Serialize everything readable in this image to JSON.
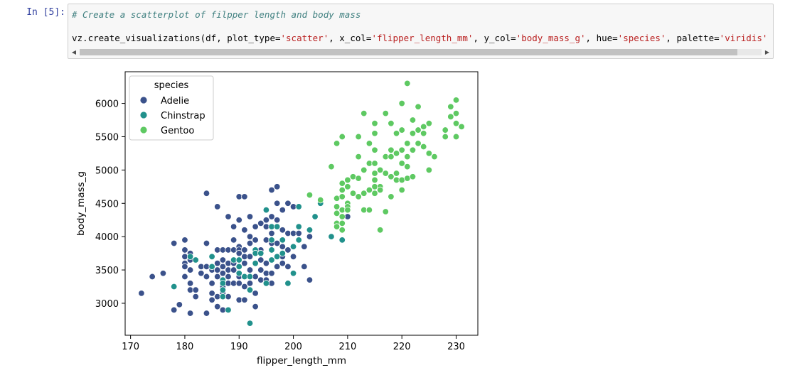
{
  "cell": {
    "prompt": "In [5]:",
    "comment": "# Create a scatterplot of filpper length and body mass",
    "code_parts": [
      {
        "text": "vz.create_visualizations(df, plot_type=",
        "cls": "plain"
      },
      {
        "text": "'scatter'",
        "cls": "str"
      },
      {
        "text": ", x_col=",
        "cls": "plain"
      },
      {
        "text": "'flipper_length_mm'",
        "cls": "str"
      },
      {
        "text": ", y_col=",
        "cls": "plain"
      },
      {
        "text": "'body_mass_g'",
        "cls": "str"
      },
      {
        "text": ", hue=",
        "cls": "plain"
      },
      {
        "text": "'species'",
        "cls": "str"
      },
      {
        "text": ", palette=",
        "cls": "plain"
      },
      {
        "text": "'viridis'",
        "cls": "str"
      }
    ],
    "scroll_left_icon": "triangle-left",
    "scroll_right_icon": "triangle-right"
  },
  "chart_data": {
    "type": "scatter",
    "xlabel": "flipper_length_mm",
    "ylabel": "body_mass_g",
    "xlim": [
      169,
      234
    ],
    "ylim": [
      2520,
      6475
    ],
    "xticks": [
      170,
      180,
      190,
      200,
      210,
      220,
      230
    ],
    "yticks": [
      3000,
      3500,
      4000,
      4500,
      5000,
      5500,
      6000
    ],
    "grid": false,
    "legend": {
      "title": "species",
      "placement": "top-left"
    },
    "series": [
      {
        "name": "Adelie",
        "color": "#3b528b",
        "points": [
          [
            172,
            3150
          ],
          [
            174,
            3400
          ],
          [
            176,
            3450
          ],
          [
            178,
            3900
          ],
          [
            178,
            2900
          ],
          [
            179,
            2980
          ],
          [
            180,
            3950
          ],
          [
            180,
            3800
          ],
          [
            180,
            3700
          ],
          [
            180,
            3600
          ],
          [
            180,
            3550
          ],
          [
            180,
            3400
          ],
          [
            181,
            3750
          ],
          [
            181,
            3650
          ],
          [
            181,
            3500
          ],
          [
            181,
            3300
          ],
          [
            181,
            3200
          ],
          [
            181,
            2850
          ],
          [
            182,
            3200
          ],
          [
            182,
            3100
          ],
          [
            183,
            3550
          ],
          [
            183,
            3450
          ],
          [
            184,
            4650
          ],
          [
            184,
            3900
          ],
          [
            184,
            3550
          ],
          [
            184,
            3400
          ],
          [
            184,
            2850
          ],
          [
            185,
            3700
          ],
          [
            185,
            3500
          ],
          [
            185,
            3300
          ],
          [
            185,
            3150
          ],
          [
            185,
            3050
          ],
          [
            186,
            4450
          ],
          [
            186,
            3800
          ],
          [
            186,
            3600
          ],
          [
            186,
            3500
          ],
          [
            186,
            3400
          ],
          [
            186,
            3100
          ],
          [
            186,
            2950
          ],
          [
            187,
            3800
          ],
          [
            187,
            3650
          ],
          [
            187,
            3550
          ],
          [
            187,
            3450
          ],
          [
            187,
            3350
          ],
          [
            187,
            3250
          ],
          [
            187,
            3150
          ],
          [
            187,
            2900
          ],
          [
            188,
            4300
          ],
          [
            188,
            3800
          ],
          [
            188,
            3600
          ],
          [
            188,
            3500
          ],
          [
            188,
            3400
          ],
          [
            188,
            3300
          ],
          [
            188,
            3100
          ],
          [
            189,
            4150
          ],
          [
            189,
            3950
          ],
          [
            189,
            3800
          ],
          [
            189,
            3600
          ],
          [
            189,
            3500
          ],
          [
            189,
            3300
          ],
          [
            190,
            4600
          ],
          [
            190,
            4250
          ],
          [
            190,
            3850
          ],
          [
            190,
            3800
          ],
          [
            190,
            3750
          ],
          [
            190,
            3650
          ],
          [
            190,
            3450
          ],
          [
            190,
            3400
          ],
          [
            190,
            3300
          ],
          [
            190,
            3050
          ],
          [
            191,
            4600
          ],
          [
            191,
            4100
          ],
          [
            191,
            3800
          ],
          [
            191,
            3700
          ],
          [
            191,
            3600
          ],
          [
            191,
            3400
          ],
          [
            191,
            3250
          ],
          [
            191,
            3050
          ],
          [
            192,
            4300
          ],
          [
            192,
            4000
          ],
          [
            192,
            3900
          ],
          [
            192,
            3700
          ],
          [
            192,
            3500
          ],
          [
            192,
            3300
          ],
          [
            193,
            4150
          ],
          [
            193,
            3950
          ],
          [
            193,
            3600
          ],
          [
            193,
            3400
          ],
          [
            193,
            3150
          ],
          [
            193,
            2950
          ],
          [
            194,
            4200
          ],
          [
            194,
            3800
          ],
          [
            194,
            3650
          ],
          [
            194,
            3500
          ],
          [
            194,
            3350
          ],
          [
            195,
            4400
          ],
          [
            195,
            4250
          ],
          [
            195,
            4150
          ],
          [
            195,
            3950
          ],
          [
            195,
            3600
          ],
          [
            195,
            3450
          ],
          [
            195,
            3350
          ],
          [
            196,
            4700
          ],
          [
            196,
            4300
          ],
          [
            196,
            4050
          ],
          [
            196,
            3900
          ],
          [
            196,
            3650
          ],
          [
            196,
            3450
          ],
          [
            196,
            3300
          ],
          [
            197,
            4750
          ],
          [
            197,
            4500
          ],
          [
            197,
            4250
          ],
          [
            197,
            3900
          ],
          [
            197,
            3700
          ],
          [
            197,
            3550
          ],
          [
            198,
            4400
          ],
          [
            198,
            4100
          ],
          [
            198,
            3850
          ],
          [
            198,
            3700
          ],
          [
            198,
            3600
          ],
          [
            199,
            4500
          ],
          [
            199,
            4050
          ],
          [
            199,
            3800
          ],
          [
            199,
            3550
          ],
          [
            200,
            4450
          ],
          [
            200,
            4050
          ],
          [
            200,
            3850
          ],
          [
            200,
            3700
          ],
          [
            201,
            4050
          ],
          [
            202,
            3850
          ],
          [
            202,
            3550
          ],
          [
            203,
            4000
          ],
          [
            203,
            3350
          ],
          [
            210,
            4300
          ]
        ]
      },
      {
        "name": "Chinstrap",
        "color": "#21918c",
        "points": [
          [
            178,
            3250
          ],
          [
            181,
            3700
          ],
          [
            182,
            3650
          ],
          [
            185,
            3700
          ],
          [
            185,
            3550
          ],
          [
            187,
            3350
          ],
          [
            187,
            3300
          ],
          [
            187,
            3200
          ],
          [
            187,
            3100
          ],
          [
            188,
            2900
          ],
          [
            189,
            3650
          ],
          [
            190,
            3650
          ],
          [
            190,
            3550
          ],
          [
            190,
            3450
          ],
          [
            191,
            3400
          ],
          [
            192,
            2700
          ],
          [
            192,
            3400
          ],
          [
            192,
            3200
          ],
          [
            193,
            3600
          ],
          [
            193,
            3800
          ],
          [
            193,
            3750
          ],
          [
            194,
            3750
          ],
          [
            195,
            4400
          ],
          [
            195,
            3300
          ],
          [
            196,
            4150
          ],
          [
            196,
            3950
          ],
          [
            196,
            3800
          ],
          [
            196,
            3650
          ],
          [
            197,
            4150
          ],
          [
            197,
            3700
          ],
          [
            198,
            3750
          ],
          [
            198,
            3950
          ],
          [
            199,
            3300
          ],
          [
            200,
            3850
          ],
          [
            200,
            3450
          ],
          [
            201,
            4150
          ],
          [
            201,
            4450
          ],
          [
            201,
            3950
          ],
          [
            203,
            4100
          ],
          [
            204,
            4300
          ],
          [
            205,
            4500
          ],
          [
            207,
            4000
          ],
          [
            209,
            3950
          ],
          [
            209,
            4100
          ]
        ]
      },
      {
        "name": "Gentoo",
        "color": "#5ec962",
        "points": [
          [
            203,
            4625
          ],
          [
            205,
            4550
          ],
          [
            207,
            5050
          ],
          [
            208,
            5400
          ],
          [
            208,
            4575
          ],
          [
            208,
            4450
          ],
          [
            208,
            4350
          ],
          [
            208,
            4200
          ],
          [
            208,
            4150
          ],
          [
            209,
            5500
          ],
          [
            209,
            4800
          ],
          [
            209,
            4700
          ],
          [
            209,
            4600
          ],
          [
            209,
            4400
          ],
          [
            209,
            4300
          ],
          [
            209,
            4200
          ],
          [
            209,
            4100
          ],
          [
            210,
            4750
          ],
          [
            210,
            4500
          ],
          [
            210,
            4450
          ],
          [
            210,
            4400
          ],
          [
            210,
            4850
          ],
          [
            211,
            4900
          ],
          [
            211,
            4650
          ],
          [
            212,
            5500
          ],
          [
            212,
            5200
          ],
          [
            212,
            4875
          ],
          [
            212,
            4600
          ],
          [
            213,
            5850
          ],
          [
            213,
            5000
          ],
          [
            213,
            4650
          ],
          [
            213,
            4400
          ],
          [
            214,
            5400
          ],
          [
            214,
            5100
          ],
          [
            214,
            4700
          ],
          [
            214,
            4400
          ],
          [
            215,
            5700
          ],
          [
            215,
            5550
          ],
          [
            215,
            5300
          ],
          [
            215,
            5100
          ],
          [
            215,
            4950
          ],
          [
            215,
            4850
          ],
          [
            215,
            4750
          ],
          [
            215,
            4650
          ],
          [
            216,
            5000
          ],
          [
            216,
            4750
          ],
          [
            216,
            4700
          ],
          [
            216,
            4100
          ],
          [
            217,
            5850
          ],
          [
            217,
            5200
          ],
          [
            217,
            4950
          ],
          [
            217,
            4375
          ],
          [
            218,
            5700
          ],
          [
            218,
            5300
          ],
          [
            218,
            5200
          ],
          [
            218,
            4900
          ],
          [
            218,
            4600
          ],
          [
            219,
            5550
          ],
          [
            219,
            5250
          ],
          [
            219,
            4950
          ],
          [
            219,
            4850
          ],
          [
            220,
            6000
          ],
          [
            220,
            5600
          ],
          [
            220,
            5300
          ],
          [
            220,
            5100
          ],
          [
            220,
            4850
          ],
          [
            220,
            4700
          ],
          [
            221,
            6300
          ],
          [
            221,
            5400
          ],
          [
            221,
            5200
          ],
          [
            221,
            4875
          ],
          [
            221,
            5050
          ],
          [
            222,
            5750
          ],
          [
            222,
            5550
          ],
          [
            222,
            5300
          ],
          [
            222,
            4900
          ],
          [
            223,
            5950
          ],
          [
            223,
            5600
          ],
          [
            223,
            5400
          ],
          [
            224,
            5650
          ],
          [
            224,
            5550
          ],
          [
            224,
            5350
          ],
          [
            225,
            5700
          ],
          [
            225,
            5250
          ],
          [
            225,
            5000
          ],
          [
            226,
            5200
          ],
          [
            228,
            5600
          ],
          [
            228,
            5500
          ],
          [
            229,
            5950
          ],
          [
            229,
            5800
          ],
          [
            230,
            6050
          ],
          [
            230,
            5850
          ],
          [
            230,
            5700
          ],
          [
            230,
            5500
          ],
          [
            231,
            5650
          ]
        ]
      }
    ]
  }
}
